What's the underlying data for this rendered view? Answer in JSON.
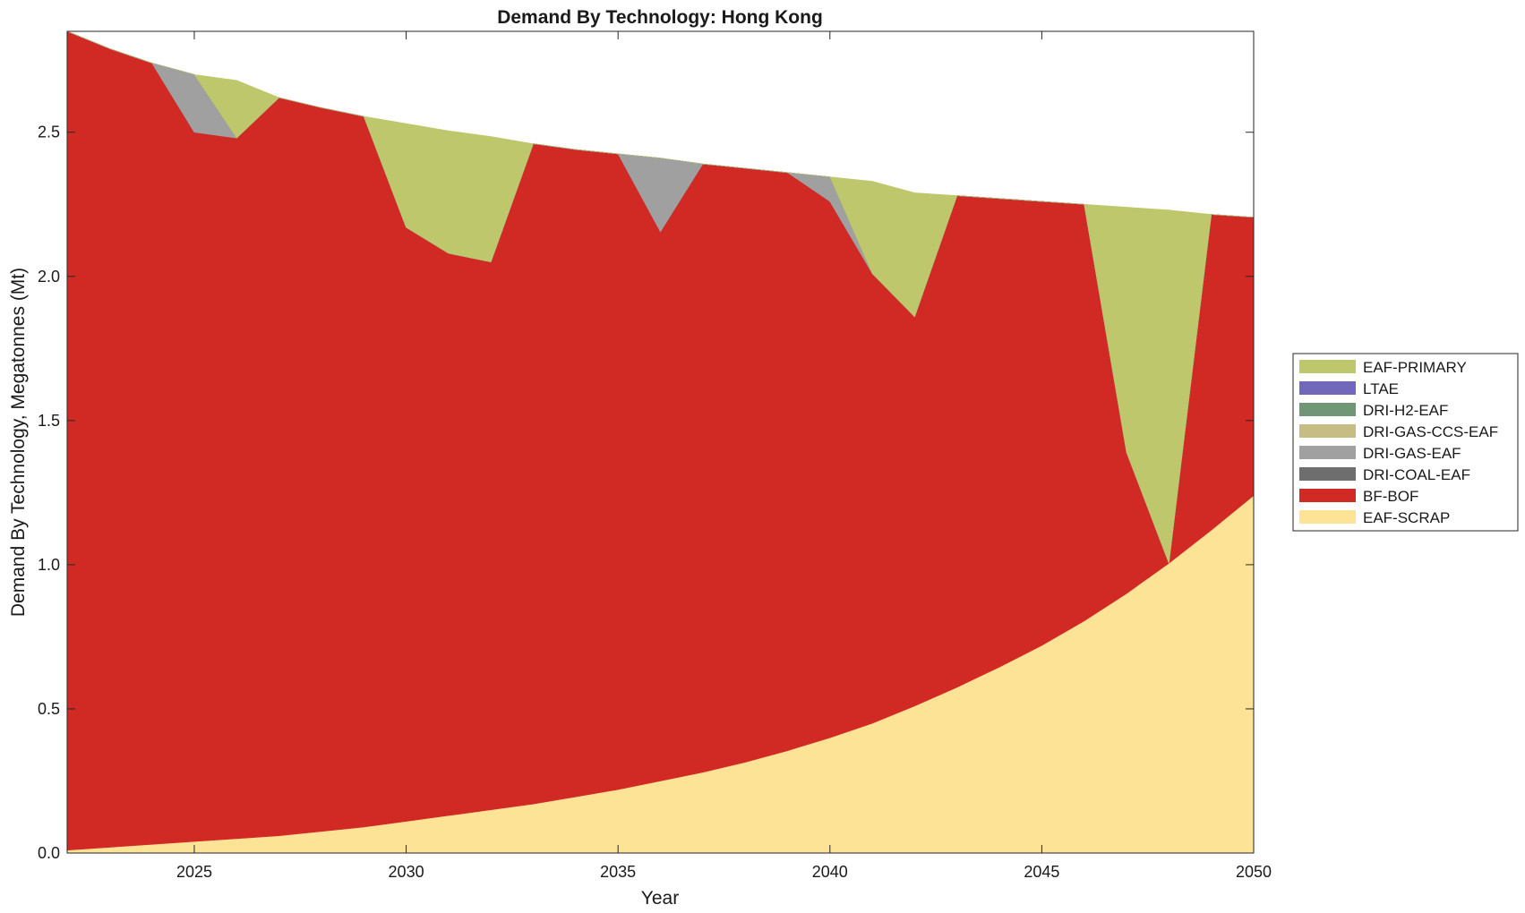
{
  "chart_data": {
    "type": "area",
    "stacked": true,
    "title": "Demand By Technology: Hong Kong",
    "xlabel": "Year",
    "ylabel": "Demand By Technology, Megatonnes (Mt)",
    "xlim": [
      2022,
      2050
    ],
    "ylim": [
      0,
      2.85
    ],
    "x_ticks": [
      2025,
      2030,
      2035,
      2040,
      2045,
      2050
    ],
    "y_ticks": [
      0.0,
      0.5,
      1.0,
      1.5,
      2.0,
      2.5
    ],
    "y_tick_labels": [
      "0.0",
      "0.5",
      "1.0",
      "1.5",
      "2.0",
      "2.5"
    ],
    "grid": false,
    "legend_position": "right",
    "x": [
      2022,
      2023,
      2024,
      2025,
      2026,
      2027,
      2028,
      2029,
      2030,
      2031,
      2032,
      2033,
      2034,
      2035,
      2036,
      2037,
      2038,
      2039,
      2040,
      2041,
      2042,
      2043,
      2044,
      2045,
      2046,
      2047,
      2048,
      2049,
      2050
    ],
    "series": [
      {
        "name": "EAF-SCRAP",
        "color": "#fde396",
        "values": [
          0.01,
          0.02,
          0.03,
          0.04,
          0.05,
          0.06,
          0.075,
          0.09,
          0.11,
          0.13,
          0.15,
          0.17,
          0.195,
          0.22,
          0.25,
          0.28,
          0.315,
          0.355,
          0.4,
          0.45,
          0.51,
          0.575,
          0.645,
          0.72,
          0.805,
          0.9,
          1.005,
          1.12,
          1.24
        ]
      },
      {
        "name": "BF-BOF",
        "color": "#d12a24",
        "values": [
          2.84,
          2.77,
          2.71,
          2.46,
          2.43,
          2.56,
          2.51,
          2.465,
          2.06,
          1.95,
          1.9,
          2.29,
          2.245,
          2.205,
          1.905,
          2.11,
          2.06,
          2.005,
          1.86,
          1.56,
          1.35,
          1.705,
          1.625,
          1.54,
          1.445,
          0.49,
          0.0,
          1.095,
          0.965
        ]
      },
      {
        "name": "DRI-COAL-EAF",
        "color": "#6e6e6e",
        "values": [
          0,
          0,
          0,
          0,
          0,
          0,
          0,
          0,
          0,
          0,
          0,
          0,
          0,
          0,
          0,
          0,
          0,
          0,
          0,
          0,
          0,
          0,
          0,
          0,
          0,
          0,
          0,
          0,
          0
        ]
      },
      {
        "name": "DRI-GAS-EAF",
        "color": "#a0a0a0",
        "values": [
          0,
          0,
          0,
          0.2,
          0,
          0,
          0,
          0,
          0,
          0,
          0,
          0,
          0,
          0,
          0.255,
          0,
          0,
          0,
          0.085,
          0,
          0,
          0,
          0,
          0,
          0,
          0,
          0,
          0,
          0
        ]
      },
      {
        "name": "DRI-GAS-CCS-EAF",
        "color": "#c5bd84",
        "values": [
          0,
          0,
          0,
          0,
          0,
          0,
          0,
          0,
          0,
          0,
          0,
          0,
          0,
          0,
          0,
          0,
          0,
          0,
          0,
          0,
          0,
          0,
          0,
          0,
          0,
          0,
          0,
          0,
          0
        ]
      },
      {
        "name": "DRI-H2-EAF",
        "color": "#6f9676",
        "values": [
          0,
          0,
          0,
          0,
          0,
          0,
          0,
          0,
          0,
          0,
          0,
          0,
          0,
          0,
          0,
          0,
          0,
          0,
          0,
          0,
          0,
          0,
          0,
          0,
          0,
          0,
          0,
          0,
          0
        ]
      },
      {
        "name": "LTAE",
        "color": "#7167bb",
        "values": [
          0,
          0,
          0,
          0,
          0,
          0,
          0,
          0,
          0,
          0,
          0,
          0,
          0,
          0,
          0,
          0,
          0,
          0,
          0,
          0,
          0,
          0,
          0,
          0,
          0,
          0,
          0,
          0,
          0
        ]
      },
      {
        "name": "EAF-PRIMARY",
        "color": "#bec76b",
        "values": [
          0,
          0,
          0,
          0,
          0.2,
          0,
          0,
          0,
          0.36,
          0.425,
          0.435,
          0,
          0,
          0,
          0,
          0,
          0,
          0,
          0,
          0.32,
          0.43,
          0,
          0,
          0,
          0,
          0.85,
          1.225,
          0,
          0
        ]
      }
    ]
  }
}
